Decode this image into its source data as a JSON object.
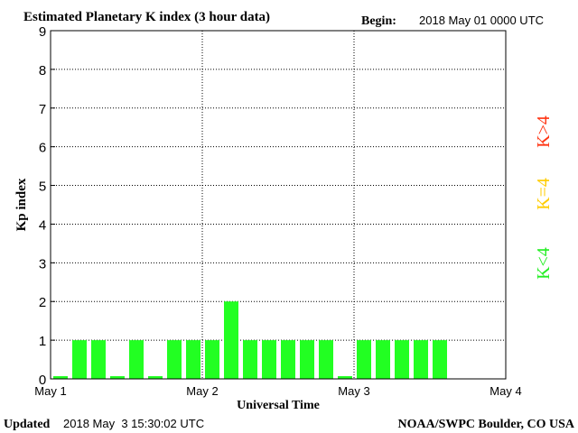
{
  "chart_data": {
    "type": "bar",
    "title": "Estimated Planetary K index (3 hour data)",
    "begin_label": "Begin:",
    "begin_value": "2018 May 01 0000 UTC",
    "xlabel": "Universal Time",
    "ylabel": "Kp index",
    "ylim": [
      0,
      9
    ],
    "yticks": [
      "0",
      "1",
      "2",
      "3",
      "4",
      "5",
      "6",
      "7",
      "8",
      "9"
    ],
    "xticks": [
      "May 1",
      "May 2",
      "May 3",
      "May 4"
    ],
    "x_range_days": 3,
    "bars_per_day": 8,
    "values": [
      0.07,
      1,
      1,
      0.07,
      1,
      0.07,
      1,
      1,
      1,
      2,
      1,
      1,
      1,
      1,
      1,
      0.07,
      1,
      1,
      1,
      1,
      1
    ],
    "grid": "dotted",
    "legend": [
      {
        "text": "K<4",
        "color": "#22ee22"
      },
      {
        "text": "K=4",
        "color": "#ffcc00"
      },
      {
        "text": "K>4",
        "color": "#ff3311"
      }
    ],
    "bar_color": "#22ff22"
  },
  "footer": {
    "updated_label": "Updated",
    "updated_value": "2018 May  3 15:30:02 UTC",
    "source": "NOAA/SWPC Boulder, CO USA"
  }
}
